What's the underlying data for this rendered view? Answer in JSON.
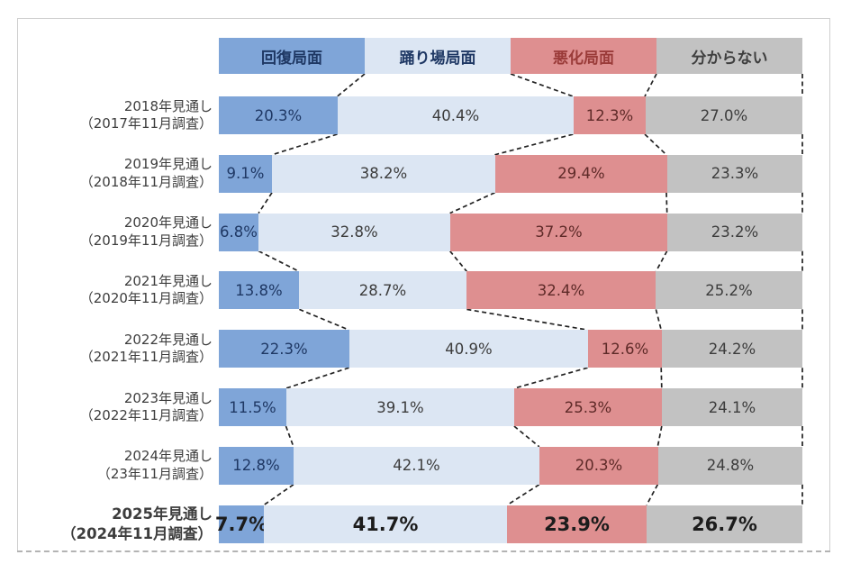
{
  "frame": {
    "border_color": "#cfcfcf",
    "bottom_rule_color": "#b3b3b3"
  },
  "chart_data": {
    "type": "bar",
    "orientation": "horizontal",
    "stacked": true,
    "unit": "%",
    "legend_position": "top",
    "connectors": "dashed-black-between-rows",
    "label_color": "#3d3d3d",
    "connector_color": "#222222",
    "legend": [
      {
        "key": "recovery",
        "label": "回復局面",
        "color": "#7FA5D8",
        "text_color": "#1F3864"
      },
      {
        "key": "plateau",
        "label": "踊り場局面",
        "color": "#DCE6F3",
        "text_color": "#1F3864"
      },
      {
        "key": "worsening",
        "label": "悪化局面",
        "color": "#DE8F90",
        "text_color": "#9A3B39"
      },
      {
        "key": "unknown",
        "label": "分からない",
        "color": "#C2C2C2",
        "text_color": "#3F3F3F"
      }
    ],
    "value_text_colors": [
      "#1F3864",
      "#3C3C3C",
      "#5E2A28",
      "#3C3C3C"
    ],
    "emphasis_value_color": "#1C1C1C",
    "rows": [
      {
        "label_line1": "2018年見通し",
        "label_line2": "（2017年11月調査）",
        "values": [
          20.3,
          40.4,
          12.3,
          27.0
        ],
        "display": [
          "20.3%",
          "40.4%",
          "12.3%",
          "27.0%"
        ],
        "emphasis": false
      },
      {
        "label_line1": "2019年見通し",
        "label_line2": "（2018年11月調査）",
        "values": [
          9.1,
          38.2,
          29.4,
          23.3
        ],
        "display": [
          "9.1%",
          "38.2%",
          "29.4%",
          "23.3%"
        ],
        "emphasis": false
      },
      {
        "label_line1": "2020年見通し",
        "label_line2": "（2019年11月調査）",
        "values": [
          6.8,
          32.8,
          37.2,
          23.2
        ],
        "display": [
          "6.8%",
          "32.8%",
          "37.2%",
          "23.2%"
        ],
        "emphasis": false
      },
      {
        "label_line1": "2021年見通し",
        "label_line2": "（2020年11月調査）",
        "values": [
          13.8,
          28.7,
          32.4,
          25.2
        ],
        "display": [
          "13.8%",
          "28.7%",
          "32.4%",
          "25.2%"
        ],
        "emphasis": false
      },
      {
        "label_line1": "2022年見通し",
        "label_line2": "（2021年11月調査）",
        "values": [
          22.3,
          40.9,
          12.6,
          24.2
        ],
        "display": [
          "22.3%",
          "40.9%",
          "12.6%",
          "24.2%"
        ],
        "emphasis": false
      },
      {
        "label_line1": "2023年見通し",
        "label_line2": "（2022年11月調査）",
        "values": [
          11.5,
          39.1,
          25.3,
          24.1
        ],
        "display": [
          "11.5%",
          "39.1%",
          "25.3%",
          "24.1%"
        ],
        "emphasis": false
      },
      {
        "label_line1": "2024年見通し",
        "label_line2": "（23年11月調査）",
        "values": [
          12.8,
          42.1,
          20.3,
          24.8
        ],
        "display": [
          "12.8%",
          "42.1%",
          "20.3%",
          "24.8%"
        ],
        "emphasis": false
      },
      {
        "label_line1": "2025年見通し",
        "label_line2": "（2024年11月調査）",
        "values": [
          7.7,
          41.7,
          23.9,
          26.7
        ],
        "display": [
          "7.7%",
          "41.7%",
          "23.9%",
          "26.7%"
        ],
        "emphasis": true
      }
    ]
  }
}
